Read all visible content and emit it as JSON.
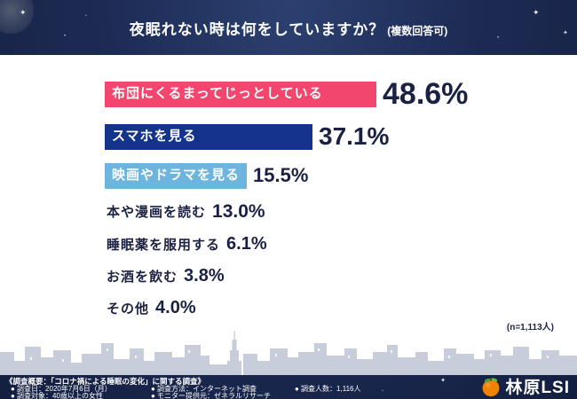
{
  "title": {
    "main": "夜眠れない時は何をしていますか？",
    "note": "(複数回答可)"
  },
  "chart_data": {
    "type": "bar",
    "orientation": "horizontal",
    "title": "夜眠れない時は何をしていますか？(複数回答可)",
    "categories": [
      "布団にくるまってじっとしている",
      "スマホを見る",
      "映画やドラマを見る",
      "本や漫画を読む",
      "睡眠薬を服用する",
      "お酒を飲む",
      "その他"
    ],
    "values": [
      48.6,
      37.1,
      15.5,
      13.0,
      6.1,
      3.8,
      4.0
    ],
    "value_labels": [
      "48.6%",
      "37.1%",
      "15.5%",
      "13.0%",
      "6.1%",
      "3.8%",
      "4.0%"
    ],
    "bar_colors": [
      "#f2466f",
      "#14338a",
      "#6db4de",
      null,
      null,
      null,
      null
    ],
    "xlim": [
      0,
      50
    ],
    "legend": false,
    "grid": false,
    "sample_note": "(n=1,113人)"
  },
  "footer": {
    "overview": "《調査概要：「コロナ禍による睡眠の変化」に関する調査》",
    "bullet": "●",
    "items": [
      "調査日：2020年7月6日（月）",
      "調査対象：40歳以上の女性",
      "調査方法：インターネット調査",
      "モニター提供元：ゼネラルリサーチ",
      "調査人数：1,116人"
    ],
    "logo_text": "林原LSI"
  },
  "decor": {
    "star": "✦",
    "dot": "•"
  },
  "colors": {
    "background_navy": "#1d2b54",
    "bar_pink": "#f2466f",
    "bar_navy": "#14338a",
    "bar_lightblue": "#6db4de",
    "text_navy": "#1b2142",
    "skyline": "#c7cdda",
    "logo_orange": "#f08300"
  }
}
